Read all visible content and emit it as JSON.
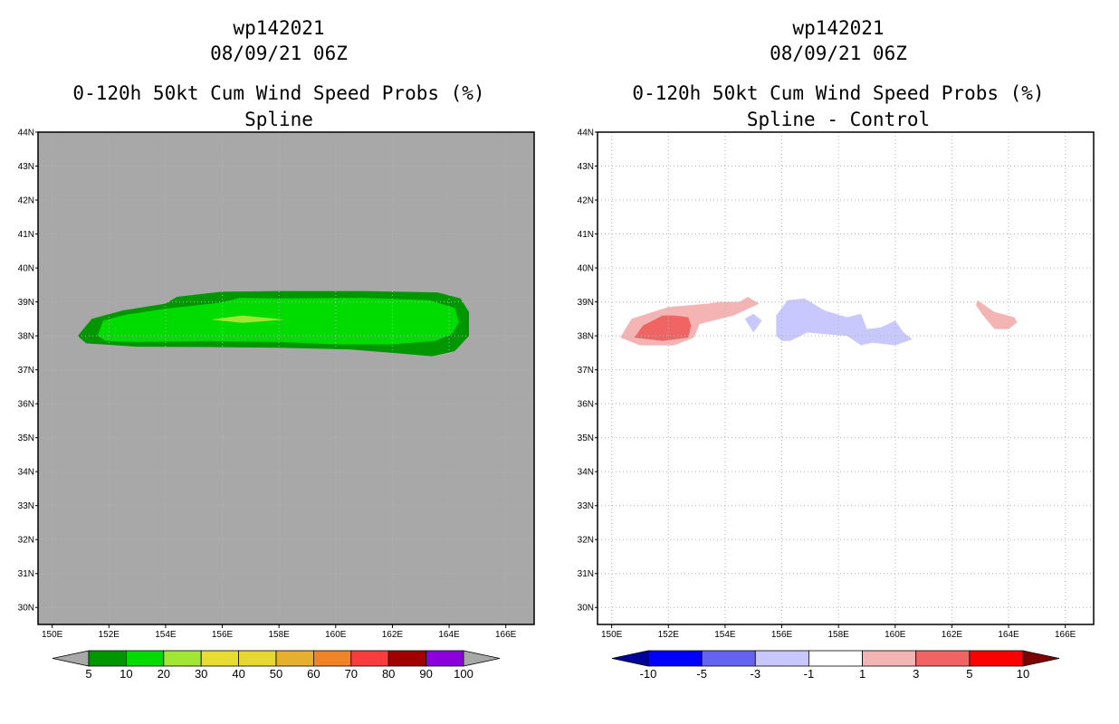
{
  "chart_data": [
    {
      "type": "heatmap",
      "storm_id": "wp142021",
      "datetime": "08/09/21 06Z",
      "title": "0-120h 50kt Cum Wind Speed Probs (%)",
      "subtitle": "Spline",
      "background_color": "#a8a8a8",
      "xlim": [
        149.5,
        167
      ],
      "ylim": [
        29.5,
        44
      ],
      "x_ticks": [
        150,
        152,
        154,
        156,
        158,
        160,
        162,
        164,
        166
      ],
      "y_ticks": [
        30,
        31,
        32,
        33,
        34,
        35,
        36,
        37,
        38,
        39,
        40,
        41,
        42,
        43,
        44
      ],
      "x_tick_labels": [
        "150E",
        "152E",
        "154E",
        "156E",
        "158E",
        "160E",
        "162E",
        "164E",
        "166E"
      ],
      "y_tick_labels": [
        "30N",
        "31N",
        "32N",
        "33N",
        "34N",
        "35N",
        "36N",
        "37N",
        "38N",
        "39N",
        "40N",
        "41N",
        "42N",
        "43N",
        "44N"
      ],
      "grid": "dotted",
      "contours": [
        {
          "level": 5,
          "color": "#009600",
          "points": [
            [
              150.9,
              38.0
            ],
            [
              151.4,
              38.5
            ],
            [
              152.5,
              38.75
            ],
            [
              154.0,
              38.95
            ],
            [
              154.4,
              39.15
            ],
            [
              156.0,
              39.3
            ],
            [
              158.0,
              39.32
            ],
            [
              161.0,
              39.32
            ],
            [
              163.6,
              39.28
            ],
            [
              164.4,
              39.1
            ],
            [
              164.7,
              38.7
            ],
            [
              164.7,
              38.0
            ],
            [
              164.2,
              37.55
            ],
            [
              163.4,
              37.4
            ],
            [
              162.0,
              37.5
            ],
            [
              160.5,
              37.6
            ],
            [
              158.0,
              37.65
            ],
            [
              155.5,
              37.67
            ],
            [
              153.0,
              37.68
            ],
            [
              151.2,
              37.78
            ]
          ]
        },
        {
          "level": 10,
          "color": "#00dc00",
          "points": [
            [
              151.6,
              38.0
            ],
            [
              151.8,
              38.45
            ],
            [
              152.6,
              38.62
            ],
            [
              154.0,
              38.8
            ],
            [
              156.0,
              38.98
            ],
            [
              156.6,
              39.12
            ],
            [
              158.0,
              39.1
            ],
            [
              161.0,
              39.12
            ],
            [
              163.3,
              39.05
            ],
            [
              164.2,
              38.82
            ],
            [
              164.35,
              38.4
            ],
            [
              164.1,
              38.05
            ],
            [
              163.5,
              37.85
            ],
            [
              162.0,
              37.75
            ],
            [
              160.0,
              37.75
            ],
            [
              158.0,
              37.82
            ],
            [
              155.5,
              37.85
            ],
            [
              153.0,
              37.82
            ],
            [
              151.9,
              37.85
            ]
          ]
        },
        {
          "level": 20,
          "color": "#a0e632",
          "points": [
            [
              155.6,
              38.48
            ],
            [
              156.7,
              38.6
            ],
            [
              158.2,
              38.48
            ],
            [
              156.7,
              38.38
            ]
          ]
        }
      ],
      "colorbar": {
        "labels": [
          "5",
          "10",
          "20",
          "30",
          "40",
          "50",
          "60",
          "70",
          "80",
          "90",
          "100"
        ],
        "colors": [
          "#009600",
          "#00dc00",
          "#a0e632",
          "#e6dc32",
          "#e6d732",
          "#e6af2d",
          "#f08228",
          "#fa3c3c",
          "#a00000",
          "#8c00dc"
        ],
        "under_color": "#a8a8a8",
        "over_color": "#a8a8a8"
      }
    },
    {
      "type": "heatmap",
      "storm_id": "wp142021",
      "datetime": "08/09/21 06Z",
      "title": "0-120h 50kt Cum Wind Speed Probs (%)",
      "subtitle": "Spline - Control",
      "background_color": "#ffffff",
      "xlim": [
        149.5,
        167
      ],
      "ylim": [
        29.5,
        44
      ],
      "x_ticks": [
        150,
        152,
        154,
        156,
        158,
        160,
        162,
        164,
        166
      ],
      "y_ticks": [
        30,
        31,
        32,
        33,
        34,
        35,
        36,
        37,
        38,
        39,
        40,
        41,
        42,
        43,
        44
      ],
      "x_tick_labels": [
        "150E",
        "152E",
        "154E",
        "156E",
        "158E",
        "160E",
        "162E",
        "164E",
        "166E"
      ],
      "y_tick_labels": [
        "30N",
        "31N",
        "32N",
        "33N",
        "34N",
        "35N",
        "36N",
        "37N",
        "38N",
        "39N",
        "40N",
        "41N",
        "42N",
        "43N",
        "44N"
      ],
      "grid": "dotted",
      "contours": [
        {
          "level": 1,
          "color": "#f5b4b4",
          "points": [
            [
              150.3,
              37.95
            ],
            [
              150.7,
              38.5
            ],
            [
              152.0,
              38.85
            ],
            [
              153.4,
              38.95
            ],
            [
              153.8,
              39.0
            ],
            [
              154.5,
              39.0
            ],
            [
              154.8,
              39.15
            ],
            [
              155.2,
              38.95
            ],
            [
              154.3,
              38.6
            ],
            [
              153.1,
              38.35
            ],
            [
              152.9,
              37.95
            ],
            [
              152.2,
              37.72
            ],
            [
              151.0,
              37.72
            ]
          ]
        },
        {
          "level": 1,
          "color": "#f5b4b4",
          "points": [
            [
              162.9,
              39.05
            ],
            [
              163.5,
              38.7
            ],
            [
              164.2,
              38.55
            ],
            [
              164.3,
              38.4
            ],
            [
              164.0,
              38.2
            ],
            [
              163.5,
              38.2
            ],
            [
              163.1,
              38.6
            ],
            [
              162.85,
              38.9
            ]
          ]
        },
        {
          "level": 3,
          "color": "#f06464",
          "points": [
            [
              150.8,
              37.95
            ],
            [
              151.1,
              38.3
            ],
            [
              151.8,
              38.6
            ],
            [
              152.2,
              38.6
            ],
            [
              152.7,
              38.55
            ],
            [
              152.8,
              38.3
            ],
            [
              152.7,
              37.95
            ],
            [
              151.8,
              37.85
            ]
          ]
        },
        {
          "level": -1,
          "color": "#c8c8ff",
          "points": [
            [
              154.7,
              38.5
            ],
            [
              155.0,
              38.65
            ],
            [
              155.3,
              38.45
            ],
            [
              155.0,
              38.1
            ]
          ]
        },
        {
          "level": -1,
          "color": "#c8c8ff",
          "points": [
            [
              155.8,
              38.0
            ],
            [
              155.8,
              38.6
            ],
            [
              156.2,
              39.05
            ],
            [
              156.8,
              39.1
            ],
            [
              157.5,
              38.75
            ],
            [
              158.3,
              38.55
            ],
            [
              158.8,
              38.65
            ],
            [
              159.0,
              38.2
            ],
            [
              159.5,
              38.25
            ],
            [
              160.0,
              38.45
            ],
            [
              160.3,
              38.1
            ],
            [
              160.6,
              37.9
            ],
            [
              160.0,
              37.72
            ],
            [
              159.2,
              37.8
            ],
            [
              158.8,
              37.72
            ],
            [
              158.3,
              38.0
            ],
            [
              157.5,
              38.05
            ],
            [
              156.9,
              38.1
            ],
            [
              156.3,
              37.85
            ],
            [
              156.0,
              37.85
            ]
          ]
        }
      ],
      "colorbar": {
        "labels": [
          "-10",
          "-5",
          "-3",
          "-1",
          "1",
          "3",
          "5",
          "10"
        ],
        "colors": [
          "#0000ff",
          "#6464f0",
          "#c8c8ff",
          "#ffffff",
          "#f5b4b4",
          "#f06464",
          "#ff0000"
        ],
        "under_color": "#00009b",
        "over_color": "#7d0000"
      }
    }
  ]
}
